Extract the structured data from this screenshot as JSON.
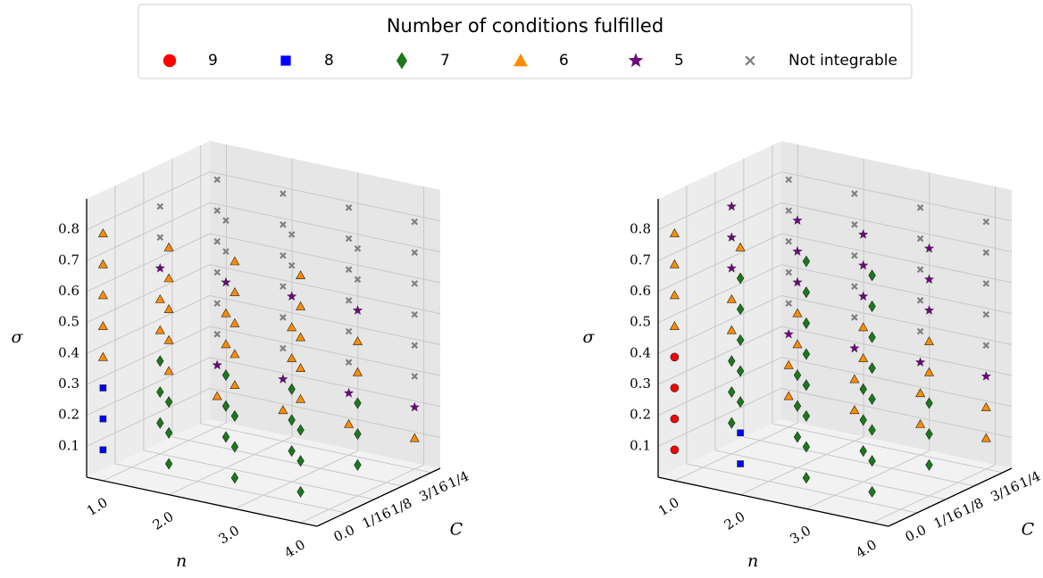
{
  "legend": {
    "title": "Number of conditions fulfilled",
    "entries": [
      {
        "name": "9",
        "color": "#ff0000",
        "marker": "circle"
      },
      {
        "name": "8",
        "color": "#0000ff",
        "marker": "square"
      },
      {
        "name": "7",
        "color": "#1a7a1a",
        "marker": "diamond"
      },
      {
        "name": "6",
        "color": "#ff8c00",
        "marker": "triangle"
      },
      {
        "name": "5",
        "color": "#6a0a7a",
        "marker": "star"
      },
      {
        "name": "Not integrable",
        "color": "#808080",
        "marker": "x"
      }
    ]
  },
  "chart_data": [
    {
      "type": "scatter3d",
      "xlabel": "n",
      "ylabel": "C",
      "zlabel": "σ",
      "xlim": [
        0.75,
        4.25
      ],
      "xticks": [
        {
          "value": 1,
          "label": "1.0"
        },
        {
          "value": 2,
          "label": "2.0"
        },
        {
          "value": 3,
          "label": "3.0"
        },
        {
          "value": 4,
          "label": "4.0"
        }
      ],
      "ylim": [
        0,
        0.27
      ],
      "yticks": [
        {
          "value": 0,
          "label": "0.0"
        },
        {
          "value": 0.0625,
          "label": "1/16"
        },
        {
          "value": 0.125,
          "label": "1/8"
        },
        {
          "value": 0.1875,
          "label": "3/16"
        },
        {
          "value": 0.25,
          "label": "1/4"
        }
      ],
      "zlim": [
        0,
        0.9
      ],
      "zticks": [
        0.1,
        0.2,
        0.3,
        0.4,
        0.5,
        0.6,
        0.7,
        0.8
      ],
      "points": [
        [],
        [
          [
            1,
            0,
            0.1
          ],
          [
            1,
            0,
            0.2
          ],
          [
            1,
            0,
            0.3
          ]
        ],
        [
          [
            2,
            0,
            0.1
          ],
          [
            2,
            0,
            0.2
          ],
          [
            2,
            0,
            0.3
          ],
          [
            3,
            0,
            0.1
          ],
          [
            3,
            0,
            0.2
          ],
          [
            3,
            0,
            0.3
          ],
          [
            4,
            0,
            0.1
          ],
          [
            4,
            0,
            0.2
          ],
          [
            4,
            0,
            0.3
          ],
          [
            1,
            0.125,
            0.1
          ],
          [
            1,
            0.125,
            0.2
          ],
          [
            1,
            0.125,
            0.3
          ],
          [
            2,
            0.125,
            0.1
          ],
          [
            2,
            0.125,
            0.2
          ],
          [
            2,
            0.125,
            0.3
          ],
          [
            3,
            0.125,
            0.1
          ],
          [
            3,
            0.125,
            0.2
          ],
          [
            3,
            0.125,
            0.3
          ],
          [
            4,
            0.125,
            0.1
          ],
          [
            4,
            0.125,
            0.2
          ],
          [
            4,
            0.125,
            0.3
          ]
        ],
        [
          [
            1,
            0,
            0.4
          ],
          [
            1,
            0,
            0.5
          ],
          [
            1,
            0,
            0.6
          ],
          [
            1,
            0,
            0.7
          ],
          [
            1,
            0,
            0.8
          ],
          [
            2,
            0,
            0.4
          ],
          [
            2,
            0,
            0.5
          ],
          [
            2,
            0,
            0.6
          ],
          [
            2,
            0,
            0.7
          ],
          [
            2,
            0,
            0.8
          ],
          [
            3,
            0,
            0.4
          ],
          [
            3,
            0,
            0.5
          ],
          [
            3,
            0,
            0.6
          ],
          [
            3,
            0,
            0.7
          ],
          [
            3,
            0,
            0.8
          ],
          [
            4,
            0,
            0.4
          ],
          [
            4,
            0,
            0.5
          ],
          [
            4,
            0,
            0.6
          ],
          [
            4,
            0,
            0.7
          ],
          [
            4,
            0,
            0.8
          ],
          [
            1,
            0.125,
            0.4
          ],
          [
            1,
            0.125,
            0.5
          ],
          [
            2,
            0.125,
            0.4
          ],
          [
            2,
            0.125,
            0.5
          ],
          [
            3,
            0.125,
            0.4
          ],
          [
            3,
            0.125,
            0.5
          ],
          [
            4,
            0.125,
            0.4
          ],
          [
            4,
            0.125,
            0.5
          ],
          [
            1,
            0.25,
            0.1
          ],
          [
            2,
            0.25,
            0.1
          ],
          [
            3,
            0.25,
            0.1
          ],
          [
            4,
            0.25,
            0.1
          ]
        ],
        [
          [
            1,
            0.125,
            0.6
          ],
          [
            2,
            0.125,
            0.6
          ],
          [
            3,
            0.125,
            0.6
          ],
          [
            4,
            0.125,
            0.6
          ],
          [
            1,
            0.25,
            0.2
          ],
          [
            2,
            0.25,
            0.2
          ],
          [
            3,
            0.25,
            0.2
          ],
          [
            4,
            0.25,
            0.2
          ]
        ],
        [
          [
            1,
            0.125,
            0.7
          ],
          [
            1,
            0.125,
            0.8
          ],
          [
            2,
            0.125,
            0.7
          ],
          [
            2,
            0.125,
            0.8
          ],
          [
            3,
            0.125,
            0.7
          ],
          [
            3,
            0.125,
            0.8
          ],
          [
            4,
            0.125,
            0.7
          ],
          [
            4,
            0.125,
            0.8
          ],
          [
            1,
            0.25,
            0.3
          ],
          [
            1,
            0.25,
            0.4
          ],
          [
            1,
            0.25,
            0.5
          ],
          [
            1,
            0.25,
            0.6
          ],
          [
            1,
            0.25,
            0.7
          ],
          [
            1,
            0.25,
            0.8
          ],
          [
            2,
            0.25,
            0.3
          ],
          [
            2,
            0.25,
            0.4
          ],
          [
            2,
            0.25,
            0.5
          ],
          [
            2,
            0.25,
            0.6
          ],
          [
            2,
            0.25,
            0.7
          ],
          [
            2,
            0.25,
            0.8
          ],
          [
            3,
            0.25,
            0.3
          ],
          [
            3,
            0.25,
            0.4
          ],
          [
            3,
            0.25,
            0.5
          ],
          [
            3,
            0.25,
            0.6
          ],
          [
            3,
            0.25,
            0.7
          ],
          [
            3,
            0.25,
            0.8
          ],
          [
            4,
            0.25,
            0.3
          ],
          [
            4,
            0.25,
            0.4
          ],
          [
            4,
            0.25,
            0.5
          ],
          [
            4,
            0.25,
            0.6
          ],
          [
            4,
            0.25,
            0.7
          ],
          [
            4,
            0.25,
            0.8
          ]
        ]
      ]
    },
    {
      "type": "scatter3d",
      "xlabel": "n",
      "ylabel": "C",
      "zlabel": "σ",
      "xlim": [
        0.75,
        4.25
      ],
      "xticks": [
        {
          "value": 1,
          "label": "1.0"
        },
        {
          "value": 2,
          "label": "2.0"
        },
        {
          "value": 3,
          "label": "3.0"
        },
        {
          "value": 4,
          "label": "4.0"
        }
      ],
      "ylim": [
        0,
        0.27
      ],
      "yticks": [
        {
          "value": 0,
          "label": "0.0"
        },
        {
          "value": 0.0625,
          "label": "1/16"
        },
        {
          "value": 0.125,
          "label": "1/8"
        },
        {
          "value": 0.1875,
          "label": "3/16"
        },
        {
          "value": 0.25,
          "label": "1/4"
        }
      ],
      "zlim": [
        0,
        0.9
      ],
      "zticks": [
        0.1,
        0.2,
        0.3,
        0.4,
        0.5,
        0.6,
        0.7,
        0.8
      ],
      "points": [
        [
          [
            1,
            0,
            0.1
          ],
          [
            1,
            0,
            0.2
          ],
          [
            1,
            0,
            0.3
          ],
          [
            1,
            0,
            0.4
          ]
        ],
        [
          [
            2,
            0,
            0.1
          ],
          [
            2,
            0,
            0.2
          ]
        ],
        [
          [
            2,
            0,
            0.3
          ],
          [
            2,
            0,
            0.4
          ],
          [
            2,
            0,
            0.5
          ],
          [
            2,
            0,
            0.6
          ],
          [
            2,
            0,
            0.7
          ],
          [
            3,
            0,
            0.1
          ],
          [
            3,
            0,
            0.2
          ],
          [
            3,
            0,
            0.3
          ],
          [
            3,
            0,
            0.4
          ],
          [
            3,
            0,
            0.5
          ],
          [
            3,
            0,
            0.6
          ],
          [
            3,
            0,
            0.7
          ],
          [
            3,
            0,
            0.8
          ],
          [
            4,
            0,
            0.1
          ],
          [
            4,
            0,
            0.2
          ],
          [
            4,
            0,
            0.3
          ],
          [
            4,
            0,
            0.4
          ],
          [
            4,
            0,
            0.5
          ],
          [
            4,
            0,
            0.6
          ],
          [
            4,
            0,
            0.7
          ],
          [
            4,
            0,
            0.8
          ],
          [
            1,
            0.125,
            0.1
          ],
          [
            1,
            0.125,
            0.2
          ],
          [
            1,
            0.125,
            0.3
          ],
          [
            2,
            0.125,
            0.1
          ],
          [
            2,
            0.125,
            0.2
          ],
          [
            2,
            0.125,
            0.3
          ],
          [
            3,
            0.125,
            0.1
          ],
          [
            3,
            0.125,
            0.2
          ],
          [
            3,
            0.125,
            0.3
          ],
          [
            4,
            0.125,
            0.1
          ],
          [
            4,
            0.125,
            0.2
          ],
          [
            4,
            0.125,
            0.3
          ]
        ],
        [
          [
            1,
            0,
            0.5
          ],
          [
            1,
            0,
            0.6
          ],
          [
            1,
            0,
            0.7
          ],
          [
            1,
            0,
            0.8
          ],
          [
            2,
            0,
            0.8
          ],
          [
            1,
            0.125,
            0.4
          ],
          [
            1,
            0.125,
            0.5
          ],
          [
            2,
            0.125,
            0.4
          ],
          [
            2,
            0.125,
            0.5
          ],
          [
            3,
            0.125,
            0.4
          ],
          [
            3,
            0.125,
            0.5
          ],
          [
            4,
            0.125,
            0.4
          ],
          [
            4,
            0.125,
            0.5
          ],
          [
            1,
            0.25,
            0.1
          ],
          [
            1,
            0.25,
            0.2
          ],
          [
            2,
            0.25,
            0.1
          ],
          [
            2,
            0.25,
            0.2
          ],
          [
            3,
            0.25,
            0.1
          ],
          [
            3,
            0.25,
            0.2
          ],
          [
            4,
            0.25,
            0.1
          ],
          [
            4,
            0.25,
            0.2
          ]
        ],
        [
          [
            1,
            0.125,
            0.6
          ],
          [
            1,
            0.125,
            0.7
          ],
          [
            1,
            0.125,
            0.8
          ],
          [
            2,
            0.125,
            0.6
          ],
          [
            2,
            0.125,
            0.7
          ],
          [
            2,
            0.125,
            0.8
          ],
          [
            3,
            0.125,
            0.6
          ],
          [
            3,
            0.125,
            0.7
          ],
          [
            3,
            0.125,
            0.8
          ],
          [
            4,
            0.125,
            0.6
          ],
          [
            4,
            0.125,
            0.7
          ],
          [
            4,
            0.125,
            0.8
          ],
          [
            1,
            0.25,
            0.3
          ],
          [
            2,
            0.25,
            0.3
          ],
          [
            3,
            0.25,
            0.3
          ],
          [
            4,
            0.25,
            0.3
          ]
        ],
        [
          [
            1,
            0.25,
            0.4
          ],
          [
            1,
            0.25,
            0.5
          ],
          [
            1,
            0.25,
            0.6
          ],
          [
            1,
            0.25,
            0.7
          ],
          [
            1,
            0.25,
            0.8
          ],
          [
            2,
            0.25,
            0.4
          ],
          [
            2,
            0.25,
            0.5
          ],
          [
            2,
            0.25,
            0.6
          ],
          [
            2,
            0.25,
            0.7
          ],
          [
            2,
            0.25,
            0.8
          ],
          [
            3,
            0.25,
            0.4
          ],
          [
            3,
            0.25,
            0.5
          ],
          [
            3,
            0.25,
            0.6
          ],
          [
            3,
            0.25,
            0.7
          ],
          [
            3,
            0.25,
            0.8
          ],
          [
            4,
            0.25,
            0.4
          ],
          [
            4,
            0.25,
            0.5
          ],
          [
            4,
            0.25,
            0.6
          ],
          [
            4,
            0.25,
            0.7
          ],
          [
            4,
            0.25,
            0.8
          ]
        ]
      ]
    }
  ]
}
